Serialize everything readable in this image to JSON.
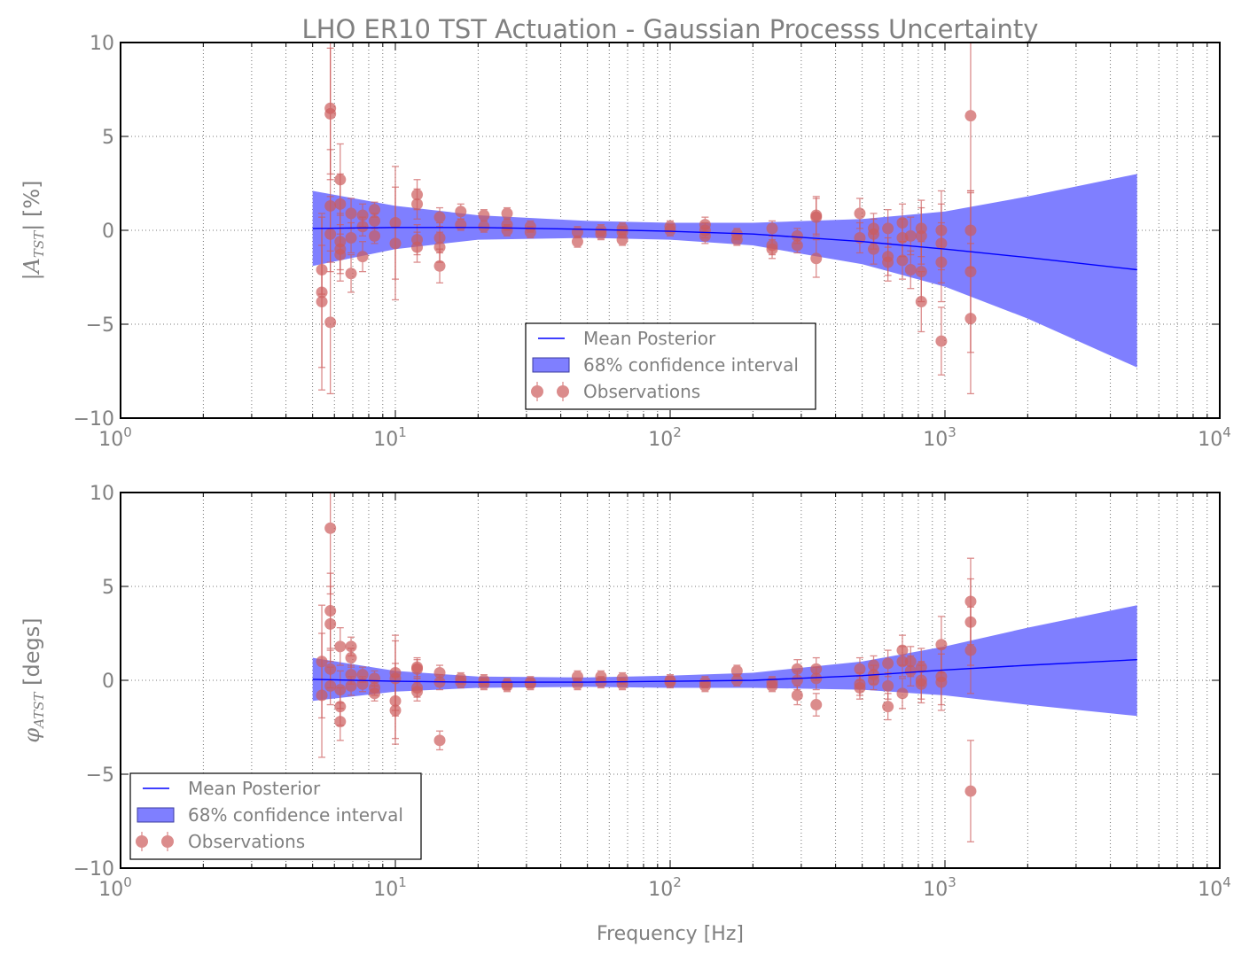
{
  "title": "LHO ER10 TST Actuation - Gaussian Processs Uncertainty",
  "xlabel": "Frequency [Hz]",
  "colors": {
    "mean": "#0000ff",
    "band": "#7f7fff",
    "observations": "#cd5c5c",
    "text": "#808080",
    "axes": "#000000"
  },
  "legend": {
    "mean": "Mean Posterior",
    "band": "68% confidence interval",
    "observations": "Observations"
  },
  "chart_data": [
    {
      "type": "scatter",
      "ylabel_main": "|A",
      "ylabel_sub": "TST",
      "ylabel_tail": "| [%]",
      "xscale": "log",
      "xlim": [
        1,
        10000
      ],
      "ylim": [
        -10,
        10
      ],
      "xtick_exponents": [
        "0",
        "1",
        "2",
        "3",
        "4"
      ],
      "ytick_labels": [
        "10",
        "5",
        "0",
        "−5",
        "−10"
      ],
      "yticks": [
        10,
        5,
        0,
        -5,
        -10
      ],
      "grid": true,
      "legend_position": "bottom-center",
      "series": [
        {
          "name": "Mean Posterior",
          "x": [
            5,
            10,
            20,
            50,
            100,
            200,
            500,
            1000,
            2000,
            5000
          ],
          "y": [
            0.1,
            0.15,
            0.15,
            0.05,
            -0.05,
            -0.2,
            -0.6,
            -1.0,
            -1.45,
            -2.1
          ]
        },
        {
          "name": "68% confidence interval",
          "x": [
            5,
            10,
            20,
            50,
            100,
            200,
            500,
            1000,
            2000,
            5000
          ],
          "lower": [
            -1.9,
            -1.0,
            -0.5,
            -0.4,
            -0.5,
            -0.8,
            -1.8,
            -3.0,
            -4.7,
            -7.3
          ],
          "upper": [
            2.1,
            1.3,
            0.8,
            0.5,
            0.4,
            0.4,
            0.6,
            1.0,
            1.8,
            3.0
          ]
        },
        {
          "name": "Observations",
          "points": [
            [
              5.4,
              -2.1,
              1.3
            ],
            [
              5.4,
              -3.3,
              4.0
            ],
            [
              5.4,
              -3.8,
              4.7
            ],
            [
              5.8,
              6.5,
              3.5
            ],
            [
              5.8,
              6.2,
              3.5
            ],
            [
              5.8,
              1.3,
              3.0
            ],
            [
              5.8,
              -4.9,
              3.8
            ],
            [
              5.8,
              -0.2,
              2.0
            ],
            [
              6.3,
              2.7,
              1.9
            ],
            [
              6.3,
              1.4,
              1.6
            ],
            [
              6.3,
              -0.6,
              1.5
            ],
            [
              6.3,
              -1.0,
              1.3
            ],
            [
              6.3,
              -1.3,
              1.4
            ],
            [
              6.9,
              0.9,
              0.8
            ],
            [
              6.9,
              -0.4,
              0.8
            ],
            [
              6.9,
              -2.3,
              1.0
            ],
            [
              7.6,
              0.8,
              0.6
            ],
            [
              7.6,
              -1.4,
              0.8
            ],
            [
              7.6,
              0.2,
              0.5
            ],
            [
              8.4,
              1.1,
              0.4
            ],
            [
              8.4,
              0.5,
              0.4
            ],
            [
              8.4,
              -0.3,
              0.4
            ],
            [
              10.0,
              0.4,
              3.0
            ],
            [
              10.0,
              -0.7,
              3.0
            ],
            [
              12.0,
              1.9,
              0.8
            ],
            [
              12.0,
              1.4,
              0.8
            ],
            [
              12.0,
              -0.5,
              0.8
            ],
            [
              12.0,
              -0.9,
              0.8
            ],
            [
              14.5,
              0.7,
              0.5
            ],
            [
              14.5,
              -0.4,
              0.8
            ],
            [
              14.5,
              -0.9,
              0.8
            ],
            [
              14.5,
              -1.9,
              0.9
            ],
            [
              17.3,
              1.0,
              0.4
            ],
            [
              17.3,
              0.3,
              0.3
            ],
            [
              21.0,
              0.8,
              0.3
            ],
            [
              21.0,
              0.2,
              0.3
            ],
            [
              25.5,
              0.9,
              0.3
            ],
            [
              25.5,
              0.3,
              0.3
            ],
            [
              25.5,
              0.0,
              0.3
            ],
            [
              31.0,
              0.2,
              0.3
            ],
            [
              31.0,
              -0.1,
              0.3
            ],
            [
              46.0,
              -0.1,
              0.3
            ],
            [
              46.0,
              -0.6,
              0.3
            ],
            [
              56.0,
              -0.2,
              0.3
            ],
            [
              56.0,
              0.0,
              0.3
            ],
            [
              67.0,
              -0.1,
              0.3
            ],
            [
              67.0,
              -0.5,
              0.3
            ],
            [
              67.0,
              0.1,
              0.3
            ],
            [
              100.0,
              0.0,
              0.3
            ],
            [
              100.0,
              0.2,
              0.3
            ],
            [
              134.0,
              0.3,
              0.4
            ],
            [
              134.0,
              -0.3,
              0.4
            ],
            [
              134.0,
              0.0,
              0.4
            ],
            [
              175.0,
              -0.2,
              0.3
            ],
            [
              175.0,
              -0.5,
              0.3
            ],
            [
              235.0,
              0.1,
              0.4
            ],
            [
              235.0,
              -0.8,
              0.5
            ],
            [
              235.0,
              -1.0,
              0.5
            ],
            [
              290.0,
              -0.3,
              0.4
            ],
            [
              290.0,
              -0.8,
              0.4
            ],
            [
              340.0,
              0.8,
              1.0
            ],
            [
              340.0,
              0.7,
              1.0
            ],
            [
              340.0,
              -1.5,
              1.0
            ],
            [
              490.0,
              0.9,
              0.8
            ],
            [
              490.0,
              -0.4,
              0.8
            ],
            [
              550.0,
              0.1,
              0.8
            ],
            [
              550.0,
              -0.2,
              0.8
            ],
            [
              550.0,
              -1.0,
              0.8
            ],
            [
              620.0,
              -1.4,
              1.0
            ],
            [
              620.0,
              -1.7,
              1.0
            ],
            [
              620.0,
              0.1,
              1.0
            ],
            [
              700.0,
              0.4,
              1.0
            ],
            [
              700.0,
              -0.4,
              1.0
            ],
            [
              700.0,
              -1.6,
              1.0
            ],
            [
              750.0,
              -0.3,
              1.0
            ],
            [
              750.0,
              -2.1,
              1.0
            ],
            [
              820.0,
              0.1,
              1.5
            ],
            [
              820.0,
              -0.3,
              1.5
            ],
            [
              820.0,
              -2.2,
              1.6
            ],
            [
              820.0,
              -3.8,
              1.6
            ],
            [
              970.0,
              0.0,
              2.1
            ],
            [
              970.0,
              -0.7,
              2.1
            ],
            [
              970.0,
              -1.7,
              2.1
            ],
            [
              970.0,
              -5.9,
              1.8
            ],
            [
              1240.0,
              6.1,
              4.0
            ],
            [
              1240.0,
              0.0,
              2.0
            ],
            [
              1240.0,
              -2.2,
              4.3
            ],
            [
              1240.0,
              -4.7,
              4.0
            ]
          ]
        }
      ]
    },
    {
      "type": "scatter",
      "ylabel_main": "φ",
      "ylabel_sub": "ATST",
      "ylabel_tail": " [degs]",
      "xscale": "log",
      "xlim": [
        1,
        10000
      ],
      "ylim": [
        -10,
        10
      ],
      "xtick_exponents": [
        "0",
        "1",
        "2",
        "3",
        "4"
      ],
      "ytick_labels": [
        "10",
        "5",
        "0",
        "−5",
        "−10"
      ],
      "yticks": [
        10,
        5,
        0,
        -5,
        -10
      ],
      "grid": true,
      "legend_position": "bottom-left",
      "series": [
        {
          "name": "Mean Posterior",
          "x": [
            5,
            10,
            20,
            50,
            100,
            200,
            500,
            1000,
            2000,
            5000
          ],
          "y": [
            0.05,
            -0.05,
            -0.1,
            -0.1,
            -0.05,
            0.0,
            0.25,
            0.55,
            0.8,
            1.1
          ]
        },
        {
          "name": "68% confidence interval",
          "x": [
            5,
            10,
            20,
            50,
            100,
            200,
            500,
            1000,
            2000,
            5000
          ],
          "lower": [
            -1.1,
            -0.6,
            -0.4,
            -0.35,
            -0.4,
            -0.4,
            -0.5,
            -0.8,
            -1.3,
            -1.9
          ],
          "upper": [
            1.2,
            0.5,
            0.2,
            0.15,
            0.25,
            0.4,
            1.0,
            1.8,
            2.8,
            4.0
          ]
        },
        {
          "name": "Observations",
          "points": [
            [
              5.4,
              1.0,
              3.0
            ],
            [
              5.4,
              -0.8,
              3.3
            ],
            [
              5.8,
              8.1,
              3.5
            ],
            [
              5.8,
              3.7,
              2.0
            ],
            [
              5.8,
              3.0,
              2.0
            ],
            [
              5.8,
              0.6,
              1.0
            ],
            [
              5.8,
              -0.3,
              1.0
            ],
            [
              6.3,
              1.8,
              1.0
            ],
            [
              6.3,
              -0.5,
              1.0
            ],
            [
              6.3,
              -1.4,
              1.0
            ],
            [
              6.3,
              -2.2,
              1.0
            ],
            [
              6.9,
              1.8,
              0.5
            ],
            [
              6.9,
              1.2,
              0.5
            ],
            [
              6.9,
              0.3,
              0.5
            ],
            [
              6.9,
              -0.3,
              0.5
            ],
            [
              7.6,
              0.3,
              0.4
            ],
            [
              7.6,
              -0.2,
              0.4
            ],
            [
              8.4,
              0.1,
              0.4
            ],
            [
              8.4,
              -0.4,
              0.4
            ],
            [
              8.4,
              -0.7,
              0.4
            ],
            [
              10.0,
              0.4,
              2.0
            ],
            [
              10.0,
              -1.1,
              2.0
            ],
            [
              10.0,
              -1.6,
              1.8
            ],
            [
              10.0,
              0.1,
              2.0
            ],
            [
              12.0,
              0.7,
              0.5
            ],
            [
              12.0,
              0.6,
              0.5
            ],
            [
              12.0,
              -0.4,
              0.5
            ],
            [
              12.0,
              -0.6,
              0.5
            ],
            [
              14.5,
              0.4,
              0.4
            ],
            [
              14.5,
              -0.1,
              0.4
            ],
            [
              14.5,
              -3.2,
              0.5
            ],
            [
              17.3,
              0.1,
              0.3
            ],
            [
              17.3,
              -0.1,
              0.3
            ],
            [
              21.0,
              0.0,
              0.3
            ],
            [
              21.0,
              -0.2,
              0.3
            ],
            [
              25.5,
              -0.2,
              0.3
            ],
            [
              25.5,
              -0.3,
              0.3
            ],
            [
              31.0,
              -0.1,
              0.3
            ],
            [
              31.0,
              -0.2,
              0.3
            ],
            [
              46.0,
              0.2,
              0.3
            ],
            [
              46.0,
              -0.2,
              0.3
            ],
            [
              56.0,
              0.2,
              0.3
            ],
            [
              56.0,
              -0.1,
              0.3
            ],
            [
              67.0,
              0.1,
              0.3
            ],
            [
              67.0,
              -0.2,
              0.3
            ],
            [
              100.0,
              -0.1,
              0.3
            ],
            [
              100.0,
              0.0,
              0.3
            ],
            [
              134.0,
              -0.1,
              0.3
            ],
            [
              134.0,
              -0.3,
              0.3
            ],
            [
              175.0,
              0.5,
              0.3
            ],
            [
              175.0,
              0.0,
              0.3
            ],
            [
              235.0,
              -0.1,
              0.3
            ],
            [
              235.0,
              -0.3,
              0.3
            ],
            [
              290.0,
              0.6,
              0.5
            ],
            [
              290.0,
              0.0,
              0.5
            ],
            [
              290.0,
              -0.8,
              0.5
            ],
            [
              340.0,
              0.6,
              0.6
            ],
            [
              340.0,
              0.1,
              0.6
            ],
            [
              340.0,
              -1.3,
              0.6
            ],
            [
              490.0,
              0.6,
              0.6
            ],
            [
              490.0,
              -0.2,
              0.6
            ],
            [
              490.0,
              -0.4,
              0.6
            ],
            [
              550.0,
              0.8,
              0.5
            ],
            [
              550.0,
              0.3,
              0.5
            ],
            [
              550.0,
              0.0,
              0.5
            ],
            [
              620.0,
              0.9,
              0.7
            ],
            [
              620.0,
              -0.3,
              0.7
            ],
            [
              620.0,
              -1.4,
              0.7
            ],
            [
              700.0,
              1.6,
              0.8
            ],
            [
              700.0,
              1.0,
              0.8
            ],
            [
              700.0,
              -0.7,
              0.8
            ],
            [
              750.0,
              1.0,
              0.8
            ],
            [
              750.0,
              0.5,
              0.8
            ],
            [
              820.0,
              0.7,
              1.0
            ],
            [
              820.0,
              0.0,
              1.0
            ],
            [
              820.0,
              -0.2,
              1.0
            ],
            [
              970.0,
              1.9,
              1.5
            ],
            [
              970.0,
              0.2,
              1.5
            ],
            [
              970.0,
              -0.1,
              1.5
            ],
            [
              1240.0,
              4.2,
              2.3
            ],
            [
              1240.0,
              3.1,
              2.3
            ],
            [
              1240.0,
              1.6,
              2.3
            ],
            [
              1240.0,
              -5.9,
              2.7
            ]
          ]
        }
      ]
    }
  ]
}
